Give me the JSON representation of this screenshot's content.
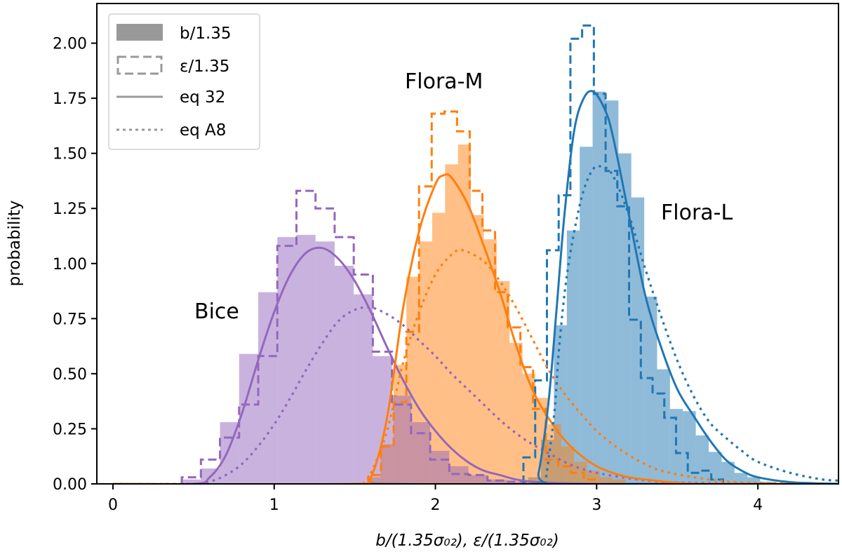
{
  "chart_data": {
    "type": "histogram+line",
    "xlabel": "b/(1.35σ₀₂), ε/(1.35σ₀₂)",
    "ylabel": "probability",
    "xlim": [
      -0.1,
      4.5
    ],
    "ylim": [
      0,
      2.18
    ],
    "grid": false,
    "x_ticks": [
      0,
      1,
      2,
      3,
      4
    ],
    "x_tick_labels": [
      "0",
      "1",
      "2",
      "3",
      "4"
    ],
    "y_ticks": [
      0,
      0.25,
      0.5,
      0.75,
      1.0,
      1.25,
      1.5,
      1.75,
      2.0
    ],
    "y_tick_labels": [
      "0.00",
      "0.25",
      "0.50",
      "0.75",
      "1.00",
      "1.25",
      "1.50",
      "1.75",
      "2.00"
    ],
    "legend": {
      "placement": "top-left",
      "entries": [
        {
          "label": "b/1.35",
          "style": "filled",
          "color": "#999999"
        },
        {
          "label": "ε/1.35",
          "style": "dashed-step",
          "color": "#999999"
        },
        {
          "label": "eq 32",
          "style": "solid",
          "color": "#999999"
        },
        {
          "label": "eq A8",
          "style": "dotted",
          "color": "#999999"
        }
      ]
    },
    "annotations": [
      "Bice",
      "Flora-M",
      "Flora-L"
    ],
    "families": [
      {
        "label": "Bice",
        "color": "#9467bd",
        "b_hist": {
          "bin_start": 0.427,
          "bin_width": 0.1185,
          "values": [
            0.02,
            0.07,
            0.28,
            0.59,
            0.87,
            1.12,
            1.13,
            1.1,
            0.99,
            0.86,
            0.58,
            0.4,
            0.28,
            0.15,
            0.08,
            0.04,
            0.02,
            0.01
          ]
        },
        "eps_hist": {
          "bin_start": 0.427,
          "bin_width": 0.1185,
          "values": [
            0.03,
            0.11,
            0.21,
            0.36,
            0.58,
            1.08,
            1.33,
            1.25,
            1.12,
            0.95,
            0.6,
            0.36,
            0.23,
            0.11,
            0.045,
            0.04,
            0.015,
            0.01
          ]
        },
        "eq32": {
          "x": [
            0,
            0.5,
            0.6,
            0.7,
            0.8,
            0.9,
            1.0,
            1.1,
            1.2,
            1.3,
            1.4,
            1.5,
            1.6,
            1.7,
            1.8,
            1.9,
            2.0,
            2.1,
            2.2,
            2.3,
            2.4,
            2.5,
            2.6,
            2.8,
            3.0,
            3.5,
            4.5
          ],
          "y": [
            0,
            0,
            0.03,
            0.13,
            0.32,
            0.56,
            0.78,
            0.95,
            1.05,
            1.07,
            1.02,
            0.92,
            0.78,
            0.62,
            0.47,
            0.34,
            0.24,
            0.16,
            0.1,
            0.06,
            0.04,
            0.02,
            0.01,
            0.003,
            0,
            0,
            0
          ]
        },
        "eqA8": {
          "x": [
            0,
            0.5,
            0.6,
            0.7,
            0.8,
            0.9,
            1.0,
            1.1,
            1.2,
            1.3,
            1.4,
            1.5,
            1.6,
            1.7,
            1.8,
            1.9,
            2.0,
            2.1,
            2.2,
            2.3,
            2.4,
            2.5,
            2.6,
            2.7,
            2.8,
            2.9,
            3.0,
            3.2,
            3.4,
            3.6,
            4.0,
            4.5
          ],
          "y": [
            0,
            0,
            0.01,
            0.04,
            0.09,
            0.17,
            0.27,
            0.39,
            0.52,
            0.64,
            0.74,
            0.79,
            0.8,
            0.77,
            0.72,
            0.65,
            0.58,
            0.5,
            0.43,
            0.36,
            0.29,
            0.23,
            0.18,
            0.14,
            0.1,
            0.07,
            0.05,
            0.025,
            0.01,
            0.005,
            0.001,
            0
          ]
        }
      },
      {
        "label": "Flora-M",
        "color": "#ff7f0e",
        "b_hist": {
          "bin_start": 1.58,
          "bin_width": 0.08,
          "values": [
            0.03,
            0.18,
            0.54,
            0.94,
            1.1,
            1.23,
            1.45,
            1.54,
            1.22,
            1.11,
            0.92,
            0.64,
            0.5,
            0.39,
            0.27,
            0.17,
            0.1,
            0.06,
            0.03,
            0.02
          ]
        },
        "eps_hist": {
          "bin_start": 1.584,
          "bin_width": 0.0786,
          "values": [
            0.04,
            0.17,
            0.37,
            0.69,
            1.35,
            1.68,
            1.69,
            1.6,
            1.33,
            1.15,
            0.87,
            0.71,
            0.53,
            0.34,
            0.11,
            0.08,
            0.05,
            0.02
          ]
        },
        "eq32": {
          "x": [
            0,
            1.5,
            1.6,
            1.7,
            1.8,
            1.9,
            2.0,
            2.05,
            2.1,
            2.2,
            2.3,
            2.4,
            2.5,
            2.6,
            2.7,
            2.8,
            2.9,
            3.0,
            3.1,
            3.2,
            3.3,
            3.5,
            3.7,
            4.5
          ],
          "y": [
            0,
            0,
            0.03,
            0.3,
            0.8,
            1.15,
            1.36,
            1.4,
            1.39,
            1.27,
            1.08,
            0.87,
            0.63,
            0.43,
            0.3,
            0.2,
            0.13,
            0.08,
            0.05,
            0.03,
            0.02,
            0.005,
            0,
            0
          ]
        },
        "eqA8": {
          "x": [
            1.55,
            1.6,
            1.7,
            1.8,
            1.9,
            2.0,
            2.1,
            2.17,
            2.3,
            2.4,
            2.5,
            2.6,
            2.7,
            2.8,
            2.9,
            3.0,
            3.1,
            3.2,
            3.3,
            3.4,
            3.6,
            3.8,
            4.0,
            4.5
          ],
          "y": [
            0,
            0.05,
            0.24,
            0.55,
            0.78,
            0.95,
            1.04,
            1.06,
            1.01,
            0.92,
            0.8,
            0.66,
            0.52,
            0.41,
            0.32,
            0.24,
            0.18,
            0.13,
            0.09,
            0.06,
            0.03,
            0.012,
            0.005,
            0
          ]
        }
      },
      {
        "label": "Flora-L",
        "color": "#1f77b4",
        "b_hist": {
          "bin_start": 2.575,
          "bin_width": 0.08,
          "values": [
            0.03,
            0.2,
            0.72,
            1.15,
            1.53,
            1.78,
            1.74,
            1.5,
            1.3,
            0.85,
            0.52,
            0.34,
            0.33,
            0.22,
            0.145,
            0.1,
            0.05,
            0.03,
            0.01
          ]
        },
        "eps_hist": {
          "bin_start": 2.546,
          "bin_width": 0.0728,
          "values": [
            0.12,
            0.47,
            1.06,
            1.31,
            2.02,
            2.08,
            1.77,
            1.42,
            1.26,
            0.745,
            0.48,
            0.41,
            0.3,
            0.14,
            0.05,
            0.06,
            0.02
          ]
        },
        "eq32": {
          "x": [
            1.6,
            2.6,
            2.64,
            2.7,
            2.75,
            2.8,
            2.86,
            2.92,
            2.98,
            3.05,
            3.1,
            3.2,
            3.3,
            3.4,
            3.5,
            3.6,
            3.7,
            3.8,
            3.9,
            4.0,
            4.2,
            4.4,
            4.5
          ],
          "y": [
            0,
            0,
            0.05,
            0.36,
            0.78,
            1.22,
            1.6,
            1.75,
            1.78,
            1.7,
            1.58,
            1.22,
            0.86,
            0.62,
            0.43,
            0.31,
            0.2,
            0.11,
            0.06,
            0.03,
            0.008,
            0.002,
            0
          ]
        },
        "eqA8": {
          "x": [
            2.68,
            2.7,
            2.74,
            2.77,
            2.82,
            2.9,
            2.97,
            3.03,
            3.1,
            3.2,
            3.3,
            3.4,
            3.5,
            3.6,
            3.7,
            3.8,
            3.9,
            4.0,
            4.2,
            4.4,
            4.5
          ],
          "y": [
            0,
            0.1,
            0.34,
            0.64,
            0.97,
            1.28,
            1.42,
            1.44,
            1.4,
            1.22,
            0.98,
            0.76,
            0.56,
            0.4,
            0.28,
            0.21,
            0.15,
            0.1,
            0.05,
            0.02,
            0.015
          ]
        }
      }
    ]
  }
}
